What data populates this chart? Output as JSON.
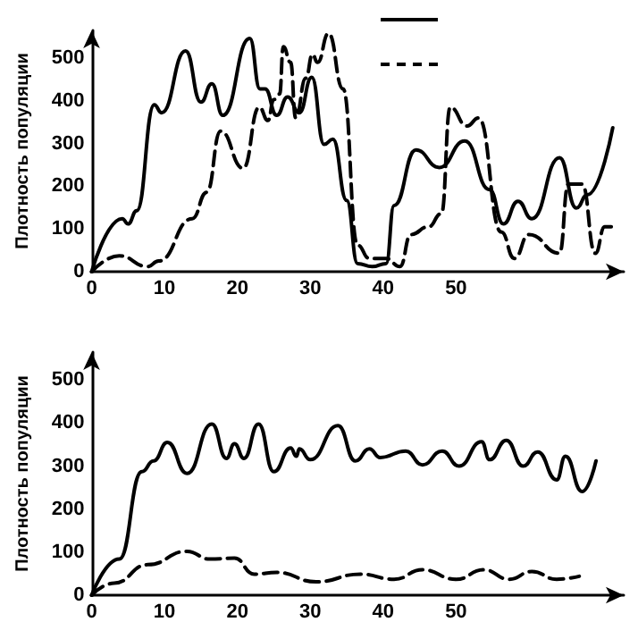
{
  "chart_data": [
    {
      "type": "line",
      "ylabel": "Плотность популяции",
      "xlim": [
        0,
        73
      ],
      "xticks": [
        0,
        10,
        20,
        30,
        40,
        50
      ],
      "ylim": [
        0,
        565
      ],
      "yticks": [
        0,
        100,
        200,
        300,
        400,
        500
      ],
      "grid": false,
      "marker": "none",
      "series": [
        {
          "color": "#000000",
          "line_style": "solid",
          "x": [
            0,
            4.2,
            5,
            6.2,
            8.6,
            9.6,
            12.9,
            15,
            16.5,
            18,
            21.7,
            23.1,
            23.8,
            25.4,
            26.9,
            28.5,
            30.2,
            31.9,
            33.1,
            35,
            36.5,
            38.5,
            40.4,
            41.5,
            44.5,
            47.7,
            51.2,
            54.6,
            56.5,
            58.5,
            60.4,
            64.2,
            66.5,
            68,
            71.5
          ],
          "values": [
            0,
            124,
            112,
            143,
            391,
            372,
            517,
            397,
            440,
            366,
            546,
            428,
            428,
            366,
            409,
            372,
            455,
            298,
            310,
            167,
            19,
            12,
            19,
            155,
            285,
            244,
            306,
            192,
            112,
            165,
            124,
            267,
            149,
            180,
            337
          ]
        },
        {
          "color": "#000000",
          "line_style": "dashed",
          "x": [
            0,
            3.8,
            7.7,
            9.2,
            13.8,
            15.8,
            17.7,
            20.8,
            23,
            24.2,
            25,
            25.8,
            26.3,
            27.3,
            28,
            29.4,
            30.3,
            31,
            32.5,
            34.5,
            36.5,
            38.1,
            40.4,
            42.3,
            43.8,
            46.2,
            48,
            49.2,
            51.5,
            53.1,
            56.2,
            58,
            60,
            64.2,
            65.4,
            67.3,
            69.1,
            70.4,
            71.5
          ],
          "values": [
            0,
            37,
            12,
            25,
            124,
            186,
            329,
            242,
            385,
            354,
            403,
            416,
            527,
            490,
            360,
            453,
            509,
            490,
            558,
            428,
            62,
            31,
            31,
            12,
            87,
            105,
            136,
            385,
            341,
            360,
            93,
            31,
            87,
            43,
            205,
            205,
            43,
            105,
            105
          ]
        }
      ]
    },
    {
      "type": "line",
      "ylabel": "Плотность популяции",
      "xlim": [
        0,
        73
      ],
      "xticks": [
        0,
        10,
        20,
        30,
        40,
        50
      ],
      "ylim": [
        0,
        565
      ],
      "yticks": [
        0,
        100,
        200,
        300,
        400,
        500
      ],
      "grid": false,
      "marker": "none",
      "series": [
        {
          "color": "#000000",
          "line_style": "solid",
          "x": [
            0,
            3.8,
            6.9,
            8.5,
            10.4,
            13.1,
            16.5,
            18.5,
            19.6,
            20.9,
            22.9,
            25,
            27.3,
            28.1,
            28.5,
            30,
            33.8,
            36.2,
            38.1,
            39.6,
            43.1,
            45.4,
            48.1,
            50.4,
            53.5,
            54.6,
            56.9,
            59.2,
            61.2,
            63.8,
            65,
            67.3,
            69.2
          ],
          "values": [
            0,
            84,
            287,
            312,
            355,
            283,
            398,
            318,
            352,
            318,
            398,
            287,
            342,
            323,
            340,
            315,
            394,
            312,
            340,
            320,
            335,
            303,
            335,
            300,
            357,
            315,
            360,
            300,
            333,
            268,
            323,
            241,
            312
          ]
        },
        {
          "color": "#000000",
          "line_style": "dashed",
          "x": [
            0,
            3.1,
            7.7,
            13.1,
            16.2,
            19.6,
            22.3,
            25.4,
            30.8,
            36.9,
            41.5,
            45.4,
            50,
            53.8,
            57.3,
            60.4,
            63.8,
            66.9
          ],
          "values": [
            0,
            28,
            71,
            102,
            84,
            86,
            49,
            53,
            31,
            49,
            37,
            59,
            37,
            59,
            37,
            55,
            37,
            44
          ]
        }
      ]
    }
  ]
}
